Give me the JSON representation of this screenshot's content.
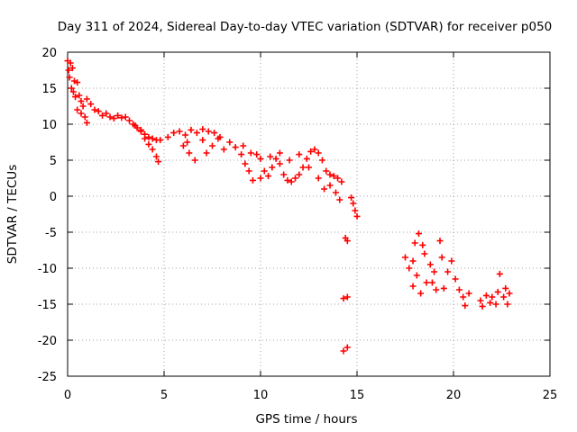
{
  "chart_data": {
    "type": "scatter",
    "title": "Day 311 of 2024, Sidereal Day-to-day VTEC variation (SDTVAR) for receiver p050",
    "xlabel": "GPS time / hours",
    "ylabel": "SDTVAR / TECUs",
    "xlim": [
      0,
      25
    ],
    "ylim": [
      -25,
      20
    ],
    "xticks": [
      0,
      5,
      10,
      15,
      20,
      25
    ],
    "yticks": [
      20,
      15,
      10,
      5,
      0,
      -5,
      -10,
      -15,
      -20,
      -25
    ],
    "grid": true,
    "marker": "plus",
    "color": "#ff0000",
    "series": [
      {
        "name": "p050",
        "points": [
          [
            0.0,
            18.8
          ],
          [
            0.05,
            17.5
          ],
          [
            0.1,
            16.5
          ],
          [
            0.15,
            18.5
          ],
          [
            0.2,
            15.0
          ],
          [
            0.25,
            17.8
          ],
          [
            0.3,
            14.5
          ],
          [
            0.35,
            16.0
          ],
          [
            0.4,
            13.8
          ],
          [
            0.5,
            15.8
          ],
          [
            0.6,
            14.0
          ],
          [
            0.7,
            13.2
          ],
          [
            0.8,
            12.5
          ],
          [
            0.9,
            11.0
          ],
          [
            1.0,
            10.2
          ],
          [
            0.5,
            12.0
          ],
          [
            0.7,
            11.5
          ],
          [
            1.0,
            13.5
          ],
          [
            1.2,
            12.8
          ],
          [
            1.4,
            12.0
          ],
          [
            1.6,
            11.8
          ],
          [
            1.8,
            11.2
          ],
          [
            2.0,
            11.5
          ],
          [
            2.2,
            11.0
          ],
          [
            2.4,
            10.8
          ],
          [
            2.6,
            11.2
          ],
          [
            2.8,
            10.9
          ],
          [
            3.0,
            11.0
          ],
          [
            3.2,
            10.5
          ],
          [
            3.4,
            10.0
          ],
          [
            3.6,
            9.5
          ],
          [
            3.8,
            9.0
          ],
          [
            4.0,
            8.6
          ],
          [
            4.2,
            8.2
          ],
          [
            4.4,
            8.0
          ],
          [
            4.6,
            7.8
          ],
          [
            4.8,
            7.8
          ],
          [
            3.5,
            9.8
          ],
          [
            3.8,
            9.2
          ],
          [
            4.0,
            8.0
          ],
          [
            4.2,
            7.2
          ],
          [
            4.4,
            6.5
          ],
          [
            4.6,
            5.5
          ],
          [
            4.7,
            4.8
          ],
          [
            5.2,
            8.2
          ],
          [
            5.5,
            8.8
          ],
          [
            5.8,
            9.0
          ],
          [
            6.1,
            8.5
          ],
          [
            6.4,
            9.2
          ],
          [
            6.7,
            8.8
          ],
          [
            7.0,
            9.3
          ],
          [
            7.3,
            9.0
          ],
          [
            7.6,
            8.8
          ],
          [
            7.9,
            8.2
          ],
          [
            6.0,
            7.0
          ],
          [
            6.3,
            6.0
          ],
          [
            6.6,
            5.0
          ],
          [
            6.2,
            7.5
          ],
          [
            7.0,
            7.8
          ],
          [
            7.2,
            6.0
          ],
          [
            7.5,
            7.0
          ],
          [
            7.8,
            8.0
          ],
          [
            8.1,
            6.5
          ],
          [
            8.4,
            7.5
          ],
          [
            8.7,
            6.8
          ],
          [
            9.0,
            5.8
          ],
          [
            9.2,
            4.5
          ],
          [
            9.4,
            3.5
          ],
          [
            9.1,
            7.0
          ],
          [
            9.5,
            6.0
          ],
          [
            9.8,
            5.8
          ],
          [
            10.0,
            5.2
          ],
          [
            9.6,
            2.2
          ],
          [
            10.0,
            2.5
          ],
          [
            10.2,
            3.5
          ],
          [
            10.4,
            2.8
          ],
          [
            10.6,
            4.0
          ],
          [
            10.8,
            5.2
          ],
          [
            11.0,
            4.5
          ],
          [
            11.2,
            3.0
          ],
          [
            11.4,
            2.2
          ],
          [
            11.6,
            2.0
          ],
          [
            11.8,
            2.5
          ],
          [
            12.0,
            3.0
          ],
          [
            12.2,
            4.0
          ],
          [
            12.4,
            5.2
          ],
          [
            12.6,
            6.2
          ],
          [
            12.8,
            6.5
          ],
          [
            13.0,
            6.0
          ],
          [
            13.2,
            5.0
          ],
          [
            13.4,
            3.5
          ],
          [
            13.6,
            3.0
          ],
          [
            13.8,
            2.8
          ],
          [
            14.0,
            2.5
          ],
          [
            14.2,
            2.0
          ],
          [
            10.5,
            5.5
          ],
          [
            11.0,
            6.0
          ],
          [
            11.5,
            5.0
          ],
          [
            12.0,
            5.8
          ],
          [
            12.5,
            4.0
          ],
          [
            13.0,
            2.5
          ],
          [
            13.3,
            1.0
          ],
          [
            13.6,
            1.5
          ],
          [
            13.9,
            0.5
          ],
          [
            14.1,
            -0.5
          ],
          [
            14.4,
            -5.8
          ],
          [
            14.5,
            -6.2
          ],
          [
            14.3,
            -14.2
          ],
          [
            14.5,
            -14.0
          ],
          [
            14.3,
            -21.5
          ],
          [
            14.5,
            -21.0
          ],
          [
            14.7,
            -0.2
          ],
          [
            14.8,
            -1.0
          ],
          [
            14.9,
            -2.0
          ],
          [
            15.0,
            -2.8
          ],
          [
            17.5,
            -8.5
          ],
          [
            17.7,
            -10.0
          ],
          [
            17.9,
            -9.0
          ],
          [
            18.0,
            -6.5
          ],
          [
            18.1,
            -11.0
          ],
          [
            18.2,
            -5.2
          ],
          [
            18.4,
            -6.8
          ],
          [
            18.5,
            -8.0
          ],
          [
            18.6,
            -12.0
          ],
          [
            18.8,
            -9.5
          ],
          [
            19.0,
            -10.5
          ],
          [
            19.1,
            -13.0
          ],
          [
            19.3,
            -6.2
          ],
          [
            19.4,
            -8.5
          ],
          [
            19.5,
            -12.8
          ],
          [
            19.7,
            -10.5
          ],
          [
            19.9,
            -9.0
          ],
          [
            20.1,
            -11.5
          ],
          [
            20.3,
            -13.0
          ],
          [
            20.5,
            -14.0
          ],
          [
            20.6,
            -15.2
          ],
          [
            20.8,
            -13.5
          ],
          [
            17.9,
            -12.5
          ],
          [
            18.3,
            -13.5
          ],
          [
            18.9,
            -12.0
          ],
          [
            21.4,
            -14.5
          ],
          [
            21.5,
            -15.3
          ],
          [
            21.7,
            -13.8
          ],
          [
            21.9,
            -14.8
          ],
          [
            22.0,
            -14.0
          ],
          [
            22.2,
            -15.0
          ],
          [
            22.3,
            -13.3
          ],
          [
            22.4,
            -10.8
          ],
          [
            22.6,
            -14.0
          ],
          [
            22.8,
            -15.0
          ],
          [
            22.7,
            -12.8
          ],
          [
            22.9,
            -13.5
          ]
        ]
      }
    ]
  }
}
